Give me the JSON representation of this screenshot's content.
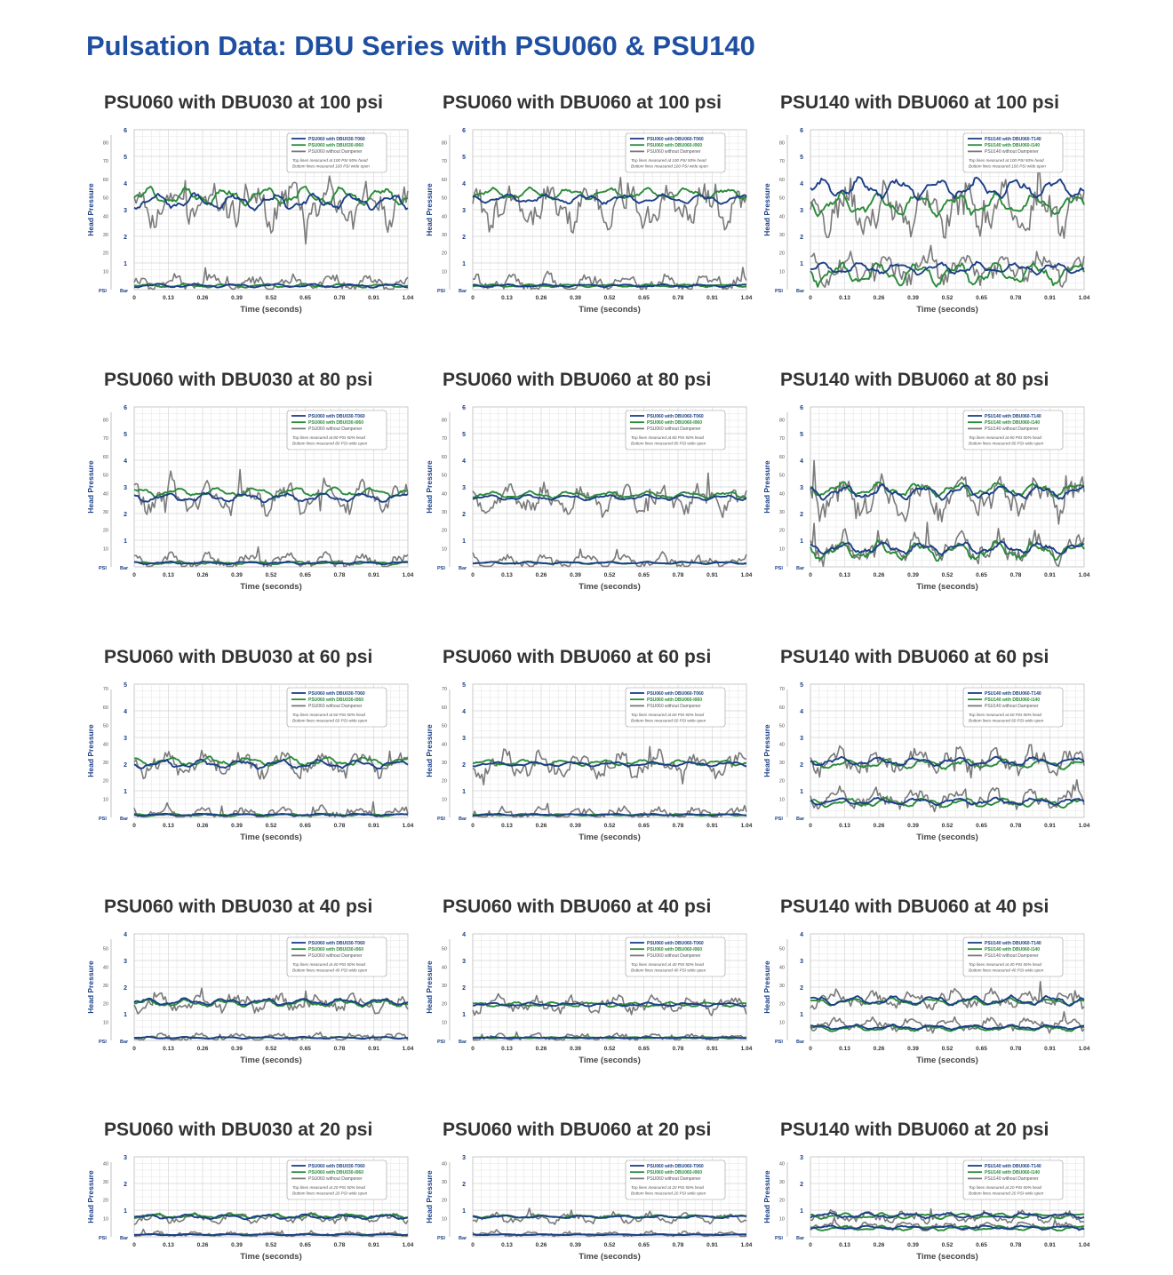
{
  "page": {
    "title": "Pulsation Data: DBU Series with PSU060 & PSU140"
  },
  "colors": {
    "blue": "#1b3f86",
    "green": "#2a8a3a",
    "gray": "#7a7a7a",
    "accent": "#1f4fa1",
    "axis": "#1b3f86"
  },
  "common": {
    "xlabel": "Time (seconds)",
    "ylabel": "Head Pressure",
    "psi_unit": "PSI",
    "bar_unit": "Bar",
    "x_ticks": [
      "0",
      "0.13",
      "0.26",
      "0.39",
      "0.52",
      "0.65",
      "0.78",
      "0.91",
      "1.04"
    ],
    "without_label": "without Dampener"
  },
  "chart_data": [
    {
      "type": "line",
      "title": "PSU060 with DBU030 at 100 psi",
      "pump": "PSU060",
      "dampener": "DBU030",
      "pressure": 100,
      "bar_max": 6,
      "psi_ticks": [
        80,
        70,
        60,
        50,
        40,
        30,
        20,
        10
      ],
      "legend": [
        "PSU060 with DBU030-T060",
        "PSU060 with DBU030-I060",
        "PSU060 without Dampener"
      ],
      "notes": [
        "Top lines measured at 100 PSI 50% head",
        "Bottom lines measured 100 PSI wide open"
      ],
      "xlim": [
        0,
        1.04
      ],
      "series": [
        {
          "name": "PSU060 with DBU030-T060",
          "color": "blue",
          "top_mean": 3.3,
          "top_amp": 0.35,
          "bottom_mean": 0.15,
          "bottom_amp": 0.08
        },
        {
          "name": "PSU060 with DBU030-I060",
          "color": "green",
          "top_mean": 3.5,
          "top_amp": 0.4,
          "bottom_mean": 0.15,
          "bottom_amp": 0.08
        },
        {
          "name": "PSU060 without Dampener",
          "color": "gray",
          "top_mean": 3.2,
          "top_amp": 0.85,
          "bottom_mean": 0.25,
          "bottom_amp": 0.3
        }
      ]
    },
    {
      "type": "line",
      "title": "PSU060 with DBU060 at 100 psi",
      "pump": "PSU060",
      "dampener": "DBU060",
      "pressure": 100,
      "bar_max": 6,
      "psi_ticks": [
        80,
        70,
        60,
        50,
        40,
        30,
        20,
        10
      ],
      "legend": [
        "PSU060 with DBU060-T060",
        "PSU060 with DBU060-I060",
        "PSU060 without Dampener"
      ],
      "notes": [
        "Top lines measured at 100 PSI 50% head",
        "Bottom lines measured 100 PSI wide open"
      ],
      "xlim": [
        0,
        1.04
      ],
      "series": [
        {
          "name": "PSU060 with DBU060-T060",
          "color": "blue",
          "top_mean": 3.4,
          "top_amp": 0.2,
          "bottom_mean": 0.15,
          "bottom_amp": 0.06
        },
        {
          "name": "PSU060 with DBU060-I060",
          "color": "green",
          "top_mean": 3.6,
          "top_amp": 0.25,
          "bottom_mean": 0.15,
          "bottom_amp": 0.06
        },
        {
          "name": "PSU060 without Dampener",
          "color": "gray",
          "top_mean": 3.1,
          "top_amp": 0.85,
          "bottom_mean": 0.25,
          "bottom_amp": 0.35
        }
      ]
    },
    {
      "type": "line",
      "title": "PSU140 with DBU060 at 100 psi",
      "pump": "PSU140",
      "dampener": "DBU060",
      "pressure": 100,
      "bar_max": 6,
      "psi_ticks": [
        80,
        70,
        60,
        50,
        40,
        30,
        20,
        10
      ],
      "legend": [
        "PSU140 with DBU060-T140",
        "PSU140 with DBU060-I140",
        "PSU140 without Dampener"
      ],
      "notes": [
        "Top lines measured at 100 PSI 50% head",
        "Bottom lines measured 100 PSI wide open"
      ],
      "xlim": [
        0,
        1.04
      ],
      "series": [
        {
          "name": "PSU140 with DBU060-T140",
          "color": "blue",
          "top_mean": 3.8,
          "top_amp": 0.45,
          "bottom_mean": 0.8,
          "bottom_amp": 0.25
        },
        {
          "name": "PSU140 with DBU060-I140",
          "color": "green",
          "top_mean": 3.2,
          "top_amp": 0.5,
          "bottom_mean": 0.6,
          "bottom_amp": 0.5
        },
        {
          "name": "PSU140 without Dampener",
          "color": "gray",
          "top_mean": 3.0,
          "top_amp": 1.0,
          "bottom_mean": 0.8,
          "bottom_amp": 0.6
        }
      ]
    },
    {
      "type": "line",
      "title": "PSU060 with DBU030 at 80 psi",
      "pump": "PSU060",
      "dampener": "DBU030",
      "pressure": 80,
      "bar_max": 6,
      "psi_ticks": [
        80,
        70,
        60,
        50,
        40,
        30,
        20,
        10
      ],
      "legend": [
        "PSU060 with DBU030-T060",
        "PSU060 with DBU030-I060",
        "PSU060 without Dampener"
      ],
      "notes": [
        "Top lines measured at 80 PSI 50% head",
        "Bottom lines measured 80 PSI wide open"
      ],
      "xlim": [
        0,
        1.04
      ],
      "series": [
        {
          "name": "PSU060 with DBU030-T060",
          "color": "blue",
          "top_mean": 2.6,
          "top_amp": 0.2,
          "bottom_mean": 0.15,
          "bottom_amp": 0.06
        },
        {
          "name": "PSU060 with DBU030-I060",
          "color": "green",
          "top_mean": 2.8,
          "top_amp": 0.2,
          "bottom_mean": 0.15,
          "bottom_amp": 0.06
        },
        {
          "name": "PSU060 without Dampener",
          "color": "gray",
          "top_mean": 2.6,
          "top_amp": 0.6,
          "bottom_mean": 0.2,
          "bottom_amp": 0.3
        }
      ]
    },
    {
      "type": "line",
      "title": "PSU060 with DBU060 at 80 psi",
      "pump": "PSU060",
      "dampener": "DBU060",
      "pressure": 80,
      "bar_max": 6,
      "psi_ticks": [
        80,
        70,
        60,
        50,
        40,
        30,
        20,
        10
      ],
      "legend": [
        "PSU060 with DBU060-T060",
        "PSU060 with DBU060-I060",
        "PSU060 without Dampener"
      ],
      "notes": [
        "Top lines measured at 80 PSI 50% head",
        "Bottom lines measured 80 PSI wide open"
      ],
      "xlim": [
        0,
        1.04
      ],
      "series": [
        {
          "name": "PSU060 with DBU060-T060",
          "color": "blue",
          "top_mean": 2.6,
          "top_amp": 0.12,
          "bottom_mean": 0.15,
          "bottom_amp": 0.05
        },
        {
          "name": "PSU060 with DBU060-I060",
          "color": "green",
          "top_mean": 2.7,
          "top_amp": 0.15,
          "bottom_mean": 0.15,
          "bottom_amp": 0.05
        },
        {
          "name": "PSU060 without Dampener",
          "color": "gray",
          "top_mean": 2.5,
          "top_amp": 0.55,
          "bottom_mean": 0.2,
          "bottom_amp": 0.3
        }
      ]
    },
    {
      "type": "line",
      "title": "PSU140 with DBU060 at 80 psi",
      "pump": "PSU140",
      "dampener": "DBU060",
      "pressure": 80,
      "bar_max": 6,
      "psi_ticks": [
        80,
        70,
        60,
        50,
        40,
        30,
        20,
        10
      ],
      "legend": [
        "PSU140 with DBU060-T140",
        "PSU140 with DBU060-I140",
        "PSU140 without Dampener"
      ],
      "notes": [
        "Top lines measured at 80 PSI 50% head",
        "Bottom lines measured 80 PSI wide open"
      ],
      "xlim": [
        0,
        1.04
      ],
      "series": [
        {
          "name": "PSU140 with DBU060-T140",
          "color": "blue",
          "top_mean": 2.8,
          "top_amp": 0.3,
          "bottom_mean": 0.7,
          "bottom_amp": 0.25
        },
        {
          "name": "PSU140 with DBU060-I140",
          "color": "green",
          "top_mean": 2.9,
          "top_amp": 0.3,
          "bottom_mean": 0.6,
          "bottom_amp": 0.4
        },
        {
          "name": "PSU140 without Dampener",
          "color": "gray",
          "top_mean": 2.6,
          "top_amp": 0.8,
          "bottom_mean": 0.7,
          "bottom_amp": 0.6
        }
      ]
    },
    {
      "type": "line",
      "title": "PSU060 with DBU030 at 60 psi",
      "pump": "PSU060",
      "dampener": "DBU030",
      "pressure": 60,
      "bar_max": 5,
      "psi_ticks": [
        70,
        60,
        50,
        40,
        30,
        20,
        10
      ],
      "legend": [
        "PSU060 with DBU030-T060",
        "PSU060 with DBU030-I060",
        "PSU060 without Dampener"
      ],
      "notes": [
        "Top lines measured at 60 PSI 50% head",
        "Bottom lines measured 60 PSI wide open"
      ],
      "xlim": [
        0,
        1.04
      ],
      "series": [
        {
          "name": "PSU060 with DBU030-T060",
          "color": "blue",
          "top_mean": 2.0,
          "top_amp": 0.2,
          "bottom_mean": 0.1,
          "bottom_amp": 0.05
        },
        {
          "name": "PSU060 with DBU030-I060",
          "color": "green",
          "top_mean": 2.1,
          "top_amp": 0.2,
          "bottom_mean": 0.1,
          "bottom_amp": 0.05
        },
        {
          "name": "PSU060 without Dampener",
          "color": "gray",
          "top_mean": 2.0,
          "top_amp": 0.5,
          "bottom_mean": 0.15,
          "bottom_amp": 0.25
        }
      ]
    },
    {
      "type": "line",
      "title": "PSU060 with DBU060 at 60 psi",
      "pump": "PSU060",
      "dampener": "DBU060",
      "pressure": 60,
      "bar_max": 5,
      "psi_ticks": [
        70,
        60,
        50,
        40,
        30,
        20,
        10
      ],
      "legend": [
        "PSU060 with DBU060-T060",
        "PSU060 with DBU060-I060",
        "PSU060 without Dampener"
      ],
      "notes": [
        "Top lines measured at 60 PSI 50% head",
        "Bottom lines measured 60 PSI wide open"
      ],
      "xlim": [
        0,
        1.04
      ],
      "series": [
        {
          "name": "PSU060 with DBU060-T060",
          "color": "blue",
          "top_mean": 2.0,
          "top_amp": 0.1,
          "bottom_mean": 0.1,
          "bottom_amp": 0.04
        },
        {
          "name": "PSU060 with DBU060-I060",
          "color": "green",
          "top_mean": 2.05,
          "top_amp": 0.12,
          "bottom_mean": 0.1,
          "bottom_amp": 0.04
        },
        {
          "name": "PSU060 without Dampener",
          "color": "gray",
          "top_mean": 1.95,
          "top_amp": 0.5,
          "bottom_mean": 0.15,
          "bottom_amp": 0.25
        }
      ]
    },
    {
      "type": "line",
      "title": "PSU140 with DBU060 at 60 psi",
      "pump": "PSU140",
      "dampener": "DBU060",
      "pressure": 60,
      "bar_max": 5,
      "psi_ticks": [
        70,
        60,
        50,
        40,
        30,
        20,
        10
      ],
      "legend": [
        "PSU140 with DBU060-T140",
        "PSU140 with DBU060-I140",
        "PSU140 without Dampener"
      ],
      "notes": [
        "Top lines measured at 60 PSI 50% head",
        "Bottom lines measured 60 PSI wide open"
      ],
      "xlim": [
        0,
        1.04
      ],
      "series": [
        {
          "name": "PSU140 with DBU060-T140",
          "color": "blue",
          "top_mean": 2.1,
          "top_amp": 0.2,
          "bottom_mean": 0.6,
          "bottom_amp": 0.15
        },
        {
          "name": "PSU140 with DBU060-I140",
          "color": "green",
          "top_mean": 2.0,
          "top_amp": 0.2,
          "bottom_mean": 0.55,
          "bottom_amp": 0.2
        },
        {
          "name": "PSU140 without Dampener",
          "color": "gray",
          "top_mean": 2.1,
          "top_amp": 0.55,
          "bottom_mean": 0.7,
          "bottom_amp": 0.4
        }
      ]
    },
    {
      "type": "line",
      "title": "PSU060 with DBU030 at 40 psi",
      "pump": "PSU060",
      "dampener": "DBU030",
      "pressure": 40,
      "bar_max": 4,
      "psi_ticks": [
        50,
        40,
        30,
        20,
        10
      ],
      "legend": [
        "PSU060 with DBU030-T060",
        "PSU060 with DBU030-I060",
        "PSU060 without Dampener"
      ],
      "notes": [
        "Top lines measured at 40 PSI 50% head",
        "Bottom lines measured 40 PSI wide open"
      ],
      "xlim": [
        0,
        1.04
      ],
      "series": [
        {
          "name": "PSU060 with DBU030-T060",
          "color": "blue",
          "top_mean": 1.45,
          "top_amp": 0.15,
          "bottom_mean": 0.1,
          "bottom_amp": 0.04
        },
        {
          "name": "PSU060 with DBU030-I060",
          "color": "green",
          "top_mean": 1.4,
          "top_amp": 0.15,
          "bottom_mean": 0.1,
          "bottom_amp": 0.04
        },
        {
          "name": "PSU060 without Dampener",
          "color": "gray",
          "top_mean": 1.4,
          "top_amp": 0.35,
          "bottom_mean": 0.12,
          "bottom_amp": 0.15
        }
      ]
    },
    {
      "type": "line",
      "title": "PSU060 with DBU060 at 40 psi",
      "pump": "PSU060",
      "dampener": "DBU060",
      "pressure": 40,
      "bar_max": 4,
      "psi_ticks": [
        50,
        40,
        30,
        20,
        10
      ],
      "legend": [
        "PSU060 with DBU060-T060",
        "PSU060 with DBU060-I060",
        "PSU060 without Dampener"
      ],
      "notes": [
        "Top lines measured at 40 PSI 50% head",
        "Bottom lines measured 40 PSI wide open"
      ],
      "xlim": [
        0,
        1.04
      ],
      "series": [
        {
          "name": "PSU060 with DBU060-T060",
          "color": "blue",
          "top_mean": 1.35,
          "top_amp": 0.08,
          "bottom_mean": 0.1,
          "bottom_amp": 0.03
        },
        {
          "name": "PSU060 with DBU060-I060",
          "color": "green",
          "top_mean": 1.35,
          "top_amp": 0.1,
          "bottom_mean": 0.1,
          "bottom_amp": 0.03
        },
        {
          "name": "PSU060 without Dampener",
          "color": "gray",
          "top_mean": 1.35,
          "top_amp": 0.35,
          "bottom_mean": 0.12,
          "bottom_amp": 0.15
        }
      ]
    },
    {
      "type": "line",
      "title": "PSU140 with DBU060 at 40 psi",
      "pump": "PSU140",
      "dampener": "DBU060",
      "pressure": 40,
      "bar_max": 4,
      "psi_ticks": [
        50,
        40,
        30,
        20,
        10
      ],
      "legend": [
        "PSU140 with DBU060-T140",
        "PSU140 with DBU060-I140",
        "PSU140 without Dampener"
      ],
      "notes": [
        "Top lines measured at 40 PSI 50% head",
        "Bottom lines measured 40 PSI wide open"
      ],
      "xlim": [
        0,
        1.04
      ],
      "series": [
        {
          "name": "PSU140 with DBU060-T140",
          "color": "blue",
          "top_mean": 1.5,
          "top_amp": 0.2,
          "bottom_mean": 0.5,
          "bottom_amp": 0.1
        },
        {
          "name": "PSU140 with DBU060-I140",
          "color": "green",
          "top_mean": 1.45,
          "top_amp": 0.15,
          "bottom_mean": 0.45,
          "bottom_amp": 0.12
        },
        {
          "name": "PSU140 without Dampener",
          "color": "gray",
          "top_mean": 1.55,
          "top_amp": 0.35,
          "bottom_mean": 0.6,
          "bottom_amp": 0.25
        }
      ]
    },
    {
      "type": "line",
      "title": "PSU060 with DBU030 at 20 psi",
      "pump": "PSU060",
      "dampener": "DBU030",
      "pressure": 20,
      "bar_max": 3,
      "psi_ticks": [
        40,
        30,
        20,
        10
      ],
      "legend": [
        "PSU060 with DBU030-T060",
        "PSU060 with DBU030-I060",
        "PSU060 without Dampener"
      ],
      "notes": [
        "Top lines measured at 20 PSI 50% head",
        "Bottom lines measured 20 PSI wide open"
      ],
      "xlim": [
        0,
        1.04
      ],
      "series": [
        {
          "name": "PSU060 with DBU030-T060",
          "color": "blue",
          "top_mean": 0.75,
          "top_amp": 0.1,
          "bottom_mean": 0.08,
          "bottom_amp": 0.03
        },
        {
          "name": "PSU060 with DBU030-I060",
          "color": "green",
          "top_mean": 0.78,
          "top_amp": 0.1,
          "bottom_mean": 0.08,
          "bottom_amp": 0.03
        },
        {
          "name": "PSU060 without Dampener",
          "color": "gray",
          "top_mean": 0.7,
          "top_amp": 0.2,
          "bottom_mean": 0.1,
          "bottom_amp": 0.1
        }
      ]
    },
    {
      "type": "line",
      "title": "PSU060 with DBU060 at 20 psi",
      "pump": "PSU060",
      "dampener": "DBU060",
      "pressure": 20,
      "bar_max": 3,
      "psi_ticks": [
        40,
        30,
        20,
        10
      ],
      "legend": [
        "PSU060 with DBU060-T060",
        "PSU060 with DBU060-I060",
        "PSU060 without Dampener"
      ],
      "notes": [
        "Top lines measured at 20 PSI 50% head",
        "Bottom lines measured 20 PSI wide open"
      ],
      "xlim": [
        0,
        1.04
      ],
      "series": [
        {
          "name": "PSU060 with DBU060-T060",
          "color": "blue",
          "top_mean": 0.75,
          "top_amp": 0.06,
          "bottom_mean": 0.08,
          "bottom_amp": 0.02
        },
        {
          "name": "PSU060 with DBU060-I060",
          "color": "green",
          "top_mean": 0.76,
          "top_amp": 0.07,
          "bottom_mean": 0.08,
          "bottom_amp": 0.02
        },
        {
          "name": "PSU060 without Dampener",
          "color": "gray",
          "top_mean": 0.7,
          "top_amp": 0.2,
          "bottom_mean": 0.1,
          "bottom_amp": 0.1
        }
      ]
    },
    {
      "type": "line",
      "title": "PSU140 with DBU060 at 20 psi",
      "pump": "PSU140",
      "dampener": "DBU060",
      "pressure": 20,
      "bar_max": 3,
      "psi_ticks": [
        40,
        30,
        20,
        10
      ],
      "legend": [
        "PSU140 with DBU060-T140",
        "PSU140 with DBU060-I140",
        "PSU140 without Dampener"
      ],
      "notes": [
        "Top lines measured at 20 PSI 50% head",
        "Bottom lines measured 20 PSI wide open"
      ],
      "xlim": [
        0,
        1.04
      ],
      "series": [
        {
          "name": "PSU140 with DBU060-T140",
          "color": "blue",
          "top_mean": 0.8,
          "top_amp": 0.12,
          "bottom_mean": 0.35,
          "bottom_amp": 0.08
        },
        {
          "name": "PSU140 with DBU060-I140",
          "color": "green",
          "top_mean": 0.78,
          "top_amp": 0.12,
          "bottom_mean": 0.32,
          "bottom_amp": 0.1
        },
        {
          "name": "PSU140 without Dampener",
          "color": "gray",
          "top_mean": 0.75,
          "top_amp": 0.22,
          "bottom_mean": 0.4,
          "bottom_amp": 0.15
        }
      ]
    }
  ]
}
